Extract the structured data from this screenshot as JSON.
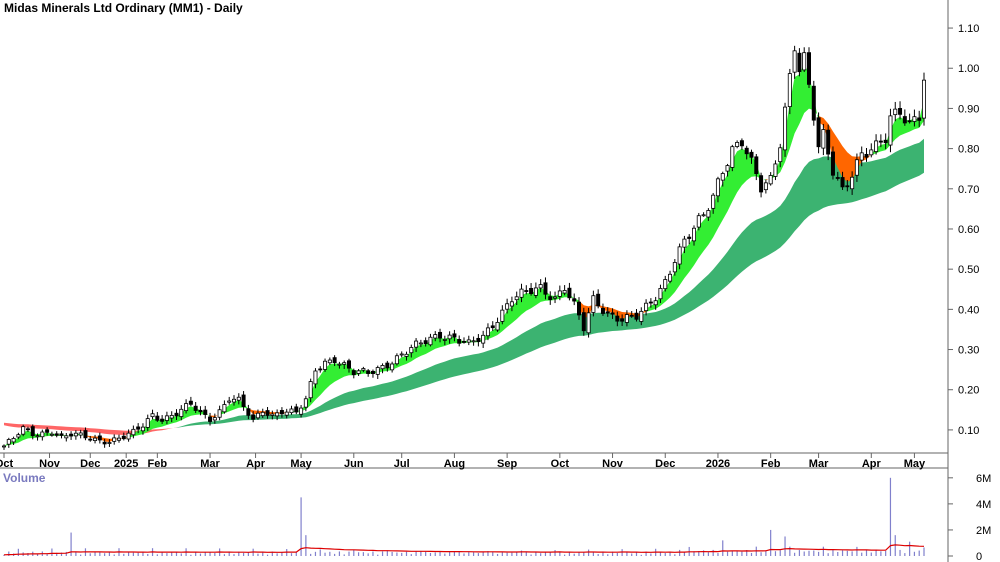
{
  "chart_data": {
    "type": "candlestick",
    "title": "Midas Minerals Ltd Ordinary (MM1) - Daily",
    "volume_label": "Volume",
    "ylim": [
      0.05,
      1.13
    ],
    "y_ticks": [
      "0.10",
      "0.20",
      "0.30",
      "0.40",
      "0.50",
      "0.60",
      "0.70",
      "0.80",
      "0.90",
      "1.00",
      "1.10"
    ],
    "y_tick_values": [
      0.1,
      0.2,
      0.3,
      0.4,
      0.5,
      0.6,
      0.7,
      0.8,
      0.9,
      1.0,
      1.1
    ],
    "volume_ticks": [
      "0",
      "2M",
      "4M",
      "6M"
    ],
    "volume_tick_values": [
      0,
      2000000,
      4000000,
      6000000
    ],
    "x_ticks": [
      "Oct",
      "Nov",
      "Dec",
      "2025",
      "Feb",
      "Mar",
      "Apr",
      "May",
      "Jun",
      "Jul",
      "Aug",
      "Sep",
      "Oct",
      "Nov",
      "Dec",
      "2026",
      "Feb",
      "Mar",
      "Apr",
      "May"
    ],
    "x_tick_index": [
      0,
      9.5,
      18,
      25.5,
      32,
      43,
      52.5,
      62,
      73,
      83,
      94,
      105,
      116,
      127,
      138,
      149,
      160,
      170,
      181,
      190
    ],
    "price_anchors": [
      [
        0,
        0.06
      ],
      [
        2,
        0.075
      ],
      [
        4,
        0.1
      ],
      [
        6,
        0.09
      ],
      [
        8,
        0.095
      ],
      [
        10,
        0.1
      ],
      [
        12,
        0.08
      ],
      [
        14,
        0.085
      ],
      [
        18,
        0.08
      ],
      [
        22,
        0.075
      ],
      [
        25,
        0.08
      ],
      [
        27,
        0.09
      ],
      [
        29,
        0.11
      ],
      [
        31,
        0.14
      ],
      [
        33,
        0.13
      ],
      [
        36,
        0.14
      ],
      [
        39,
        0.16
      ],
      [
        41,
        0.14
      ],
      [
        43,
        0.13
      ],
      [
        45,
        0.15
      ],
      [
        47,
        0.18
      ],
      [
        49,
        0.17
      ],
      [
        52,
        0.12
      ],
      [
        54,
        0.15
      ],
      [
        56,
        0.14
      ],
      [
        58,
        0.15
      ],
      [
        61,
        0.14
      ],
      [
        63,
        0.17
      ],
      [
        65,
        0.25
      ],
      [
        67,
        0.27
      ],
      [
        69,
        0.28
      ],
      [
        71,
        0.26
      ],
      [
        73,
        0.24
      ],
      [
        76,
        0.24
      ],
      [
        79,
        0.26
      ],
      [
        82,
        0.28
      ],
      [
        85,
        0.3
      ],
      [
        88,
        0.32
      ],
      [
        91,
        0.34
      ],
      [
        94,
        0.33
      ],
      [
        97,
        0.31
      ],
      [
        100,
        0.33
      ],
      [
        103,
        0.38
      ],
      [
        106,
        0.43
      ],
      [
        109,
        0.44
      ],
      [
        112,
        0.45
      ],
      [
        115,
        0.43
      ],
      [
        117,
        0.46
      ],
      [
        119,
        0.41
      ],
      [
        121,
        0.35
      ],
      [
        123,
        0.42
      ],
      [
        126,
        0.39
      ],
      [
        129,
        0.38
      ],
      [
        132,
        0.38
      ],
      [
        134,
        0.4
      ],
      [
        136,
        0.43
      ],
      [
        138,
        0.47
      ],
      [
        140,
        0.53
      ],
      [
        142,
        0.57
      ],
      [
        144,
        0.6
      ],
      [
        146,
        0.63
      ],
      [
        148,
        0.68
      ],
      [
        150,
        0.75
      ],
      [
        152,
        0.8
      ],
      [
        154,
        0.82
      ],
      [
        156,
        0.76
      ],
      [
        158,
        0.7
      ],
      [
        160,
        0.72
      ],
      [
        162,
        0.82
      ],
      [
        164,
        0.98
      ],
      [
        165,
        1.06
      ],
      [
        166,
        1.0
      ],
      [
        167,
        1.02
      ],
      [
        168,
        0.95
      ],
      [
        169,
        0.88
      ],
      [
        170,
        0.8
      ],
      [
        171,
        0.83
      ],
      [
        173,
        0.75
      ],
      [
        175,
        0.7
      ],
      [
        177,
        0.74
      ],
      [
        179,
        0.78
      ],
      [
        182,
        0.8
      ],
      [
        184,
        0.83
      ],
      [
        185,
        0.88
      ],
      [
        187,
        0.9
      ],
      [
        189,
        0.86
      ],
      [
        191,
        0.88
      ],
      [
        192,
        0.97
      ]
    ],
    "series": [
      {
        "name": "short_mma_band",
        "role": "short-term moving average ribbon",
        "colors": {
          "up": "#33ee33",
          "down": "#ff6600"
        }
      },
      {
        "name": "long_mma_band",
        "role": "long-term moving average ribbon",
        "colors": {
          "up": "#3cb371",
          "down": "#ff6666"
        }
      }
    ],
    "volume_spikes": [
      [
        14,
        1800000
      ],
      [
        62,
        4500000
      ],
      [
        63,
        1600000
      ],
      [
        150,
        1200000
      ],
      [
        160,
        2000000
      ],
      [
        163,
        1500000
      ],
      [
        185,
        6000000
      ],
      [
        186,
        1600000
      ],
      [
        189,
        1100000
      ]
    ]
  },
  "colors": {
    "candle": "#000000",
    "grid_axis": "#666666",
    "volume_bar": "#8080cc",
    "volume_line": "#dd0000",
    "short_up": "#33ee33",
    "short_down": "#ff6600",
    "long_up": "#3cb371",
    "long_down": "#ff6666"
  }
}
